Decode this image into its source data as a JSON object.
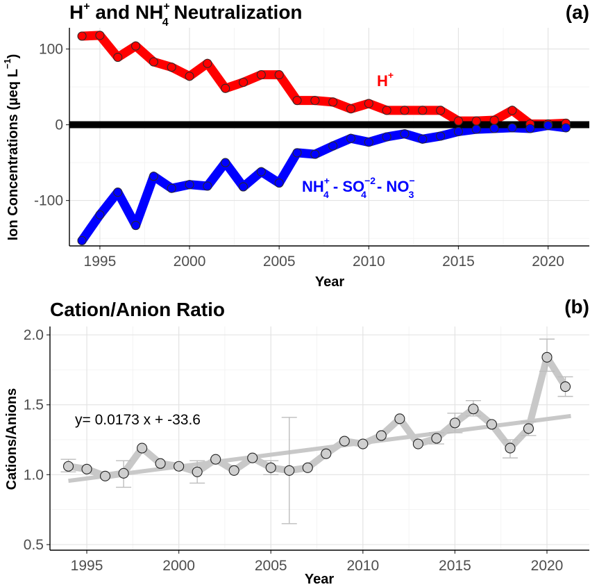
{
  "chart_data": [
    {
      "panel": "(a)",
      "type": "line",
      "title_parts": [
        "H",
        "+",
        " and NH",
        "+",
        "4",
        " Neutralization"
      ],
      "xlabel": "Year",
      "ylabel_parts": [
        "Ion Concentrations (µeq L",
        "−1",
        ")"
      ],
      "xlim": [
        1993.3,
        2022.3
      ],
      "ylim": [
        -160,
        128
      ],
      "xticks": [
        1995,
        2000,
        2005,
        2010,
        2015,
        2020
      ],
      "yticks": [
        -100,
        0,
        100
      ],
      "hline": 0,
      "x": [
        1994,
        1995,
        1996,
        1997,
        1998,
        1999,
        2000,
        2001,
        2002,
        2003,
        2004,
        2005,
        2006,
        2007,
        2008,
        2009,
        2010,
        2011,
        2012,
        2013,
        2014,
        2015,
        2016,
        2017,
        2018,
        2019,
        2020,
        2021
      ],
      "series": [
        {
          "name_parts": [
            "H",
            "+"
          ],
          "color": "#ff0000",
          "values": [
            117,
            118,
            89,
            104,
            83,
            76,
            64,
            81,
            48,
            56,
            66,
            66,
            32,
            32,
            30,
            21,
            28,
            19,
            19,
            19,
            19,
            5,
            5,
            6,
            19,
            1,
            1,
            2
          ]
        },
        {
          "name_parts": [
            "NH",
            "+",
            "4",
            " - SO",
            "−2",
            "4",
            " - NO",
            "−",
            "3"
          ],
          "color": "#0000ff",
          "values": [
            -153,
            -119,
            -89,
            -133,
            -68,
            -84,
            -79,
            -81,
            -50,
            -82,
            -62,
            -77,
            -37,
            -39,
            -28,
            -18,
            -23,
            -16,
            -12,
            -19,
            -15,
            -9,
            -6,
            -5,
            -4,
            -5,
            -1,
            -4
          ]
        }
      ]
    },
    {
      "panel": "(b)",
      "type": "line",
      "title": "Cation/Anion Ratio",
      "xlabel": "Year",
      "ylabel": "Cations/Anions",
      "xlim": [
        1993.0,
        2022.3
      ],
      "ylim": [
        0.46,
        2.06
      ],
      "xticks": [
        1995,
        2000,
        2005,
        2010,
        2015,
        2020
      ],
      "yticks": [
        0.5,
        1.0,
        1.5,
        2.0
      ],
      "ytick_labels": [
        "0.5",
        "1.0",
        "1.5",
        "2.0"
      ],
      "color": "#c8c8c8",
      "x": [
        1994,
        1995,
        1996,
        1997,
        1998,
        1999,
        2000,
        2001,
        2002,
        2003,
        2004,
        2005,
        2006,
        2007,
        2008,
        2009,
        2010,
        2011,
        2012,
        2013,
        2014,
        2015,
        2016,
        2017,
        2018,
        2019,
        2020,
        2021
      ],
      "values": [
        1.06,
        1.04,
        0.99,
        1.01,
        1.19,
        1.08,
        1.06,
        1.02,
        1.11,
        1.03,
        1.12,
        1.05,
        1.03,
        1.05,
        1.15,
        1.24,
        1.22,
        1.28,
        1.4,
        1.22,
        1.26,
        1.37,
        1.47,
        1.36,
        1.19,
        1.33,
        1.84,
        1.63
      ],
      "error_low": [
        1.02,
        null,
        null,
        0.91,
        null,
        null,
        null,
        0.94,
        null,
        null,
        null,
        1.0,
        0.65,
        null,
        null,
        null,
        null,
        null,
        null,
        null,
        1.22,
        1.3,
        1.42,
        null,
        1.12,
        1.28,
        1.74,
        1.56
      ],
      "error_high": [
        1.11,
        null,
        null,
        1.1,
        null,
        null,
        null,
        1.1,
        null,
        null,
        null,
        1.1,
        1.41,
        null,
        null,
        null,
        null,
        null,
        null,
        null,
        1.3,
        1.44,
        1.53,
        null,
        1.25,
        1.38,
        1.97,
        1.7
      ],
      "trend": {
        "x": [
          1994,
          2021.3
        ],
        "y": [
          0.956,
          1.42
        ]
      },
      "equation": "y= 0.0173 x + -33.6"
    }
  ]
}
